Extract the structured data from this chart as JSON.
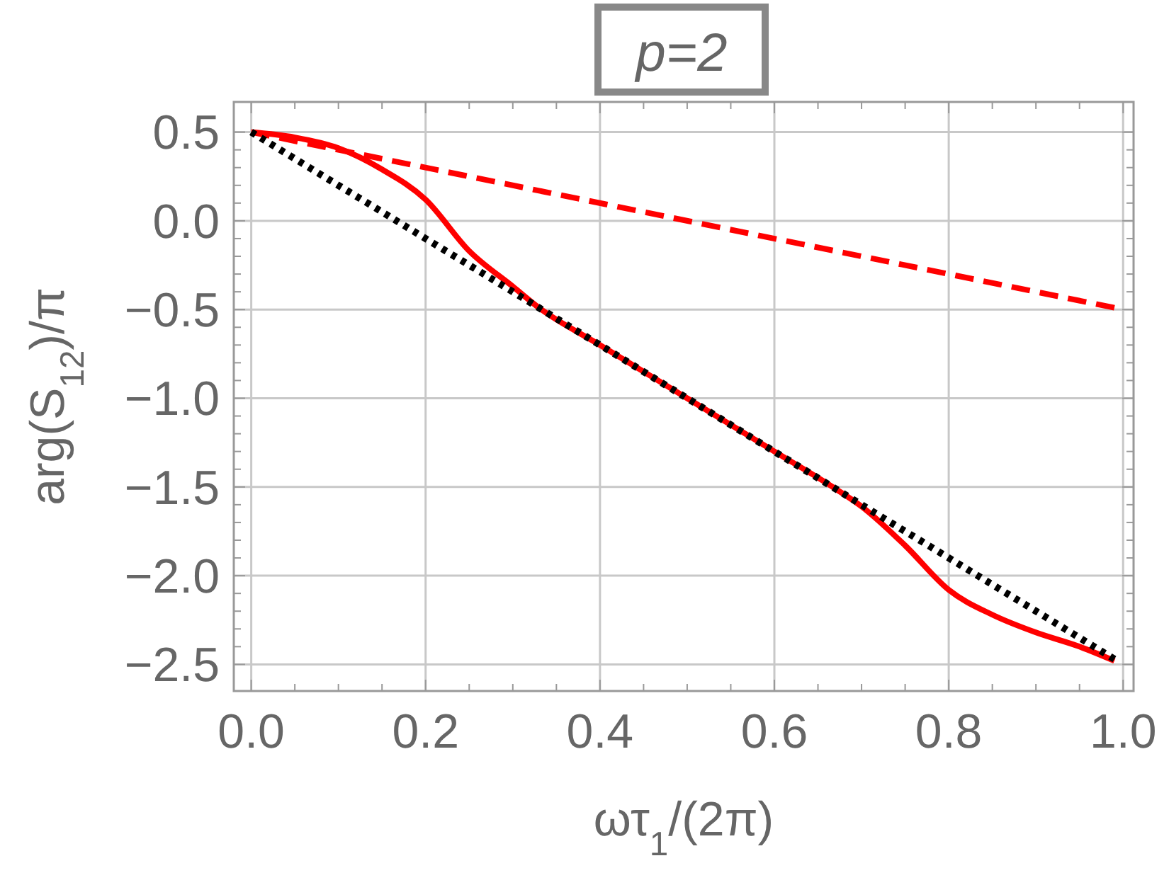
{
  "chart_data": {
    "type": "line",
    "title": "p=2",
    "xlabel": "ωτ$_{1}$/(2π)",
    "ylabel": "arg(S$_{12}$)/π",
    "xlim": [
      -0.02,
      1.012
    ],
    "ylim": [
      -2.65,
      0.67
    ],
    "xticks": [
      {
        "value": 0,
        "label": "0.0"
      },
      {
        "value": 0.05,
        "label": null
      },
      {
        "value": 0.1,
        "label": null
      },
      {
        "value": 0.15,
        "label": null
      },
      {
        "value": 0.2,
        "label": "0.2"
      },
      {
        "value": 0.25,
        "label": null
      },
      {
        "value": 0.3,
        "label": null
      },
      {
        "value": 0.35,
        "label": null
      },
      {
        "value": 0.4,
        "label": "0.4"
      },
      {
        "value": 0.45,
        "label": null
      },
      {
        "value": 0.5,
        "label": null
      },
      {
        "value": 0.55,
        "label": null
      },
      {
        "value": 0.6,
        "label": "0.6"
      },
      {
        "value": 0.65,
        "label": null
      },
      {
        "value": 0.7,
        "label": null
      },
      {
        "value": 0.75,
        "label": null
      },
      {
        "value": 0.8,
        "label": "0.8"
      },
      {
        "value": 0.85,
        "label": null
      },
      {
        "value": 0.9,
        "label": null
      },
      {
        "value": 0.95,
        "label": null
      },
      {
        "value": 1,
        "label": "1.0"
      }
    ],
    "yticks": [
      {
        "value": 0.5,
        "label": "0.5"
      },
      {
        "value": 0.4,
        "label": null
      },
      {
        "value": 0.3,
        "label": null
      },
      {
        "value": 0.2,
        "label": null
      },
      {
        "value": 0.1,
        "label": null
      },
      {
        "value": 0,
        "label": "0.0"
      },
      {
        "value": -0.1,
        "label": null
      },
      {
        "value": -0.2,
        "label": null
      },
      {
        "value": -0.3,
        "label": null
      },
      {
        "value": -0.4,
        "label": null
      },
      {
        "value": -0.5,
        "label": "−0.5"
      },
      {
        "value": -0.6,
        "label": null
      },
      {
        "value": -0.7,
        "label": null
      },
      {
        "value": -0.8,
        "label": null
      },
      {
        "value": -0.9,
        "label": null
      },
      {
        "value": -1,
        "label": "−1.0"
      },
      {
        "value": -1.1,
        "label": null
      },
      {
        "value": -1.2,
        "label": null
      },
      {
        "value": -1.3,
        "label": null
      },
      {
        "value": -1.4,
        "label": null
      },
      {
        "value": -1.5,
        "label": "−1.5"
      },
      {
        "value": -1.6,
        "label": null
      },
      {
        "value": -1.7,
        "label": null
      },
      {
        "value": -1.8,
        "label": null
      },
      {
        "value": -1.9,
        "label": null
      },
      {
        "value": -2,
        "label": "−2.0"
      },
      {
        "value": -2.1,
        "label": null
      },
      {
        "value": -2.2,
        "label": null
      },
      {
        "value": -2.3,
        "label": null
      },
      {
        "value": -2.4,
        "label": null
      },
      {
        "value": -2.5,
        "label": "−2.5"
      }
    ],
    "grid": true,
    "series": [
      {
        "color": "#ff0000",
        "line_style": "dashed",
        "x": [
          0,
          0.99
        ],
        "values": [
          0.5,
          -0.49
        ]
      },
      {
        "color": "#ff0000",
        "line_style": "solid",
        "x": [
          0,
          0.05,
          0.1,
          0.15,
          0.2,
          0.25,
          0.3,
          0.33,
          0.4,
          0.5,
          0.6,
          0.67,
          0.7,
          0.75,
          0.8,
          0.85,
          0.9,
          0.95,
          0.99
        ],
        "values": [
          0.5,
          0.47,
          0.41,
          0.29,
          0.12,
          -0.17,
          -0.37,
          -0.49,
          -0.7,
          -1,
          -1.3,
          -1.51,
          -1.61,
          -1.83,
          -2.08,
          -2.22,
          -2.32,
          -2.4,
          -2.48
        ]
      },
      {
        "color": "#000000",
        "line_style": "dotted",
        "x": [
          0,
          0.99
        ],
        "values": [
          0.5,
          -2.47
        ]
      }
    ]
  }
}
